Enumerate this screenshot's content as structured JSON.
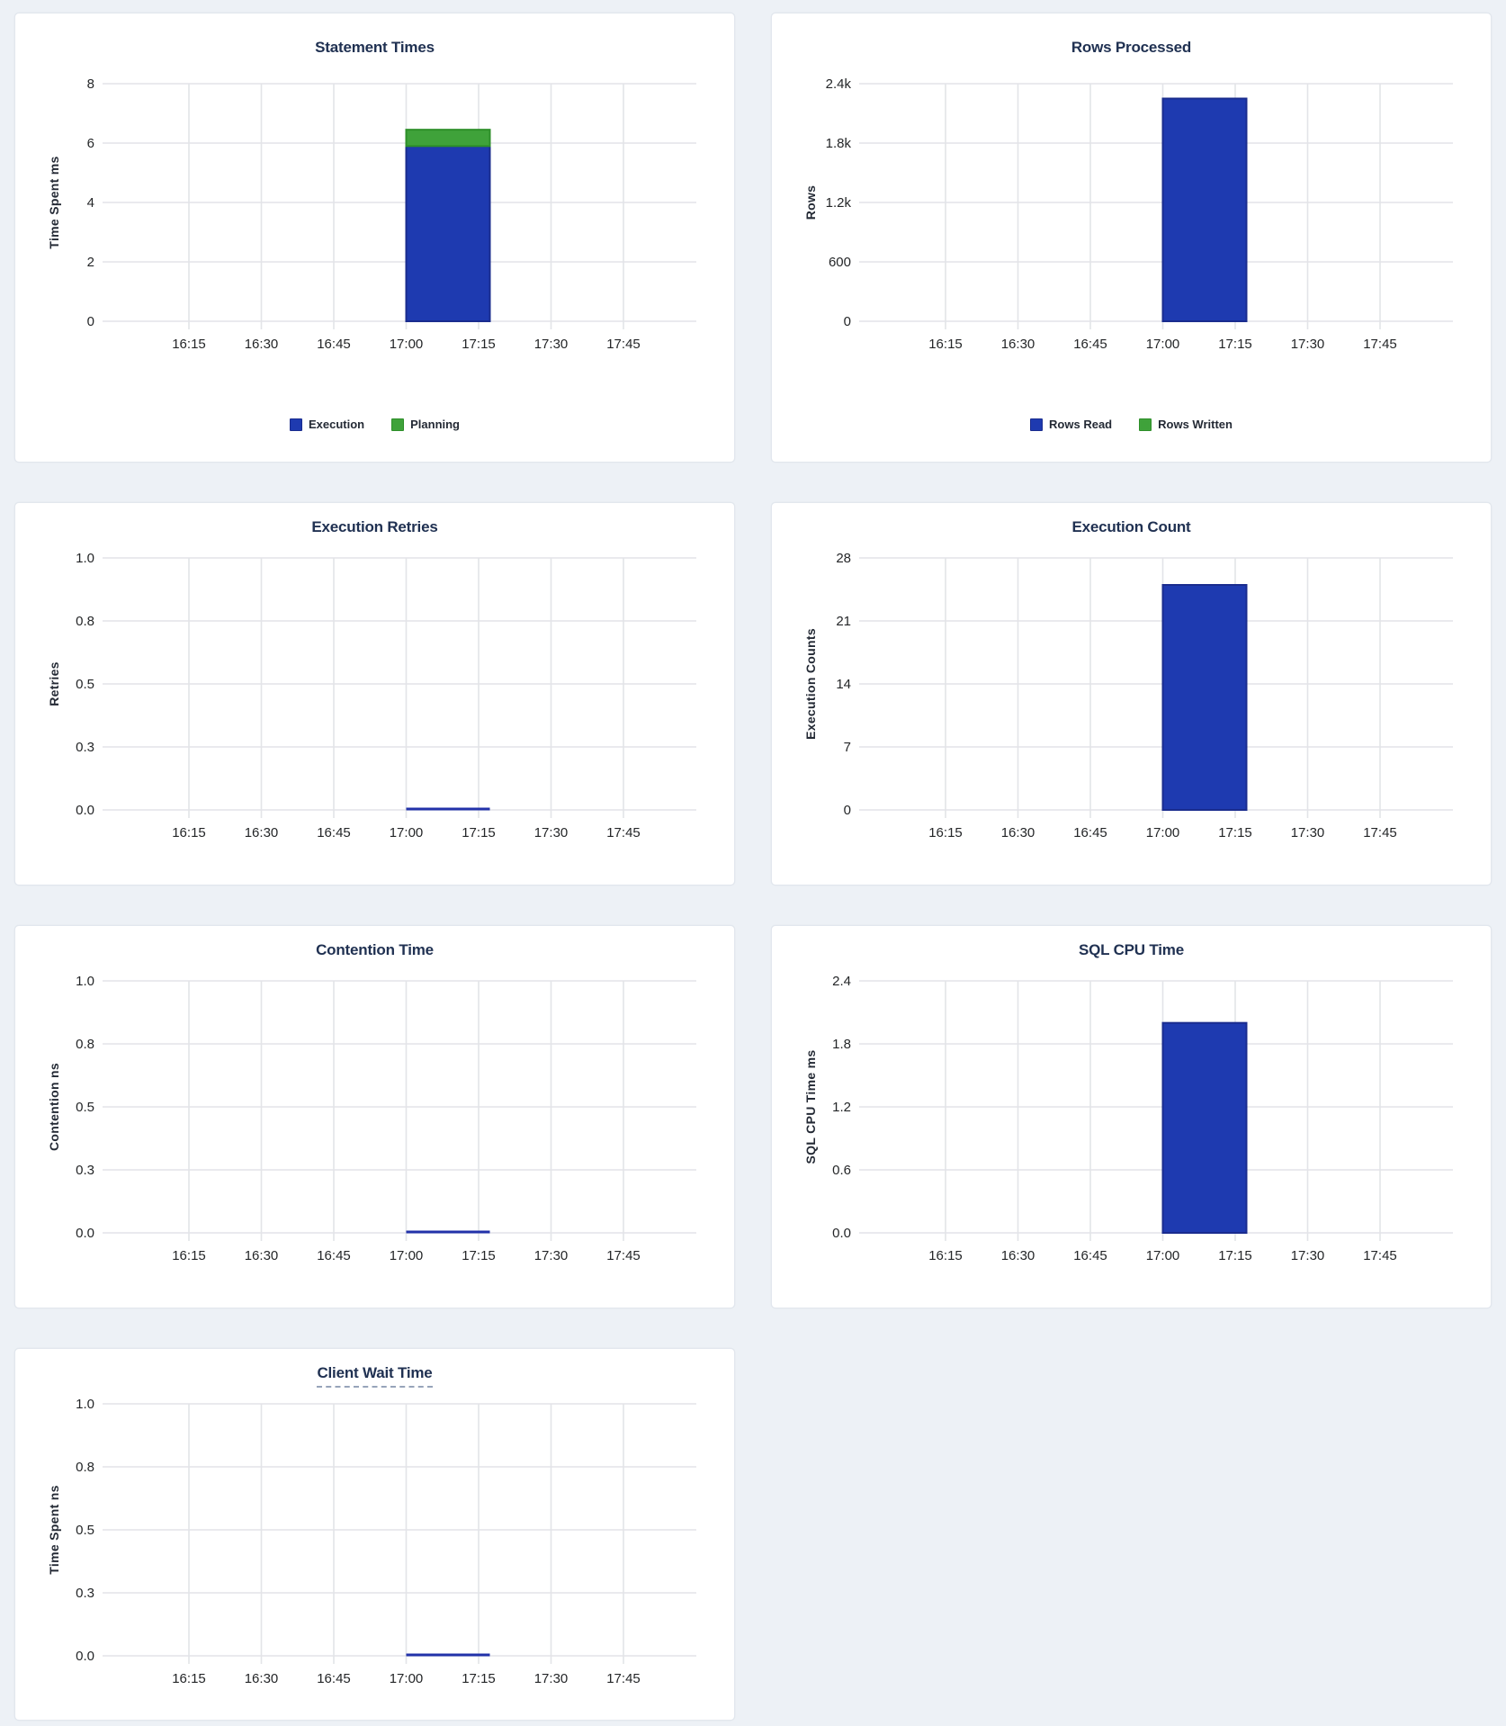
{
  "page": {
    "background": "#edf1f6",
    "panel_background": "#ffffff",
    "panel_border": "#e2e7ee"
  },
  "colors": {
    "title": "#203152",
    "tick_text": "#242628",
    "axis_label_text": "#242a35",
    "gridline": "#e3e4e8",
    "blue_fill": "#1e3ab0",
    "blue_stroke": "#1a2c8e",
    "green_fill": "#3fa23a",
    "green_stroke": "#2e8f2a",
    "zero_line": "#2232a9",
    "underline_dash": "#97a4ba"
  },
  "x_axis": {
    "ticks": [
      "16:15",
      "16:30",
      "16:45",
      "17:00",
      "17:15",
      "17:30",
      "17:45"
    ],
    "bucket_start": "17:00",
    "bucket_end": "17:17"
  },
  "chart_data": [
    {
      "type": "bar",
      "stacked": true,
      "title": "Statement Times",
      "ylabel": "Time Spent ms",
      "ylim": [
        0,
        8
      ],
      "yticks": [
        0,
        2,
        4,
        6,
        8
      ],
      "ytick_labels": [
        "0",
        "2",
        "4",
        "6",
        "8"
      ],
      "x": [
        "17:00"
      ],
      "legend_position": "bottom",
      "size": "tall",
      "series": [
        {
          "name": "Execution",
          "values": [
            5.9
          ],
          "color": "blue"
        },
        {
          "name": "Planning",
          "values": [
            0.55
          ],
          "color": "green"
        }
      ]
    },
    {
      "type": "bar",
      "stacked": true,
      "title": "Rows Processed",
      "ylabel": "Rows",
      "ylim": [
        0,
        2400
      ],
      "yticks": [
        0,
        600,
        1200,
        1800,
        2400
      ],
      "ytick_labels": [
        "0",
        "600",
        "1.2k",
        "1.8k",
        "2.4k"
      ],
      "x": [
        "17:00"
      ],
      "legend_position": "bottom",
      "size": "tall",
      "series": [
        {
          "name": "Rows Read",
          "values": [
            2250
          ],
          "color": "blue"
        },
        {
          "name": "Rows Written",
          "values": [
            0
          ],
          "color": "green"
        }
      ]
    },
    {
      "type": "line",
      "title": "Execution Retries",
      "ylabel": "Retries",
      "ylim": [
        0,
        1
      ],
      "yticks": [
        0,
        0.25,
        0.5,
        0.75,
        1.0
      ],
      "ytick_labels": [
        "0.0",
        "0.3",
        "0.5",
        "0.8",
        "1.0"
      ],
      "x": [
        "17:00"
      ],
      "size": "short",
      "series": [
        {
          "name": "Retries",
          "values": [
            0
          ],
          "color": "blue"
        }
      ]
    },
    {
      "type": "bar",
      "title": "Execution Count",
      "ylabel": "Execution Counts",
      "ylim": [
        0,
        28
      ],
      "yticks": [
        0,
        7,
        14,
        21,
        28
      ],
      "ytick_labels": [
        "0",
        "7",
        "14",
        "21",
        "28"
      ],
      "x": [
        "17:00"
      ],
      "size": "short",
      "series": [
        {
          "name": "Execution Count",
          "values": [
            25
          ],
          "color": "blue"
        }
      ]
    },
    {
      "type": "line",
      "title": "Contention Time",
      "ylabel": "Contention ns",
      "ylim": [
        0,
        1
      ],
      "yticks": [
        0,
        0.25,
        0.5,
        0.75,
        1.0
      ],
      "ytick_labels": [
        "0.0",
        "0.3",
        "0.5",
        "0.8",
        "1.0"
      ],
      "x": [
        "17:00"
      ],
      "size": "short",
      "series": [
        {
          "name": "Contention",
          "values": [
            0
          ],
          "color": "blue"
        }
      ]
    },
    {
      "type": "bar",
      "title": "SQL CPU Time",
      "ylabel": "SQL CPU Time ms",
      "ylim": [
        0,
        2.4
      ],
      "yticks": [
        0,
        0.6,
        1.2,
        1.8,
        2.4
      ],
      "ytick_labels": [
        "0.0",
        "0.6",
        "1.2",
        "1.8",
        "2.4"
      ],
      "x": [
        "17:00"
      ],
      "size": "short",
      "series": [
        {
          "name": "SQL CPU Time",
          "values": [
            2.0
          ],
          "color": "blue"
        }
      ]
    },
    {
      "type": "line",
      "title": "Client Wait Time",
      "title_underlined": true,
      "ylabel": "Time Spent ns",
      "ylim": [
        0,
        1
      ],
      "yticks": [
        0,
        0.25,
        0.5,
        0.75,
        1.0
      ],
      "ytick_labels": [
        "0.0",
        "0.3",
        "0.5",
        "0.8",
        "1.0"
      ],
      "x": [
        "17:00"
      ],
      "size": "last",
      "series": [
        {
          "name": "Client Wait",
          "values": [
            0
          ],
          "color": "blue"
        }
      ]
    }
  ]
}
